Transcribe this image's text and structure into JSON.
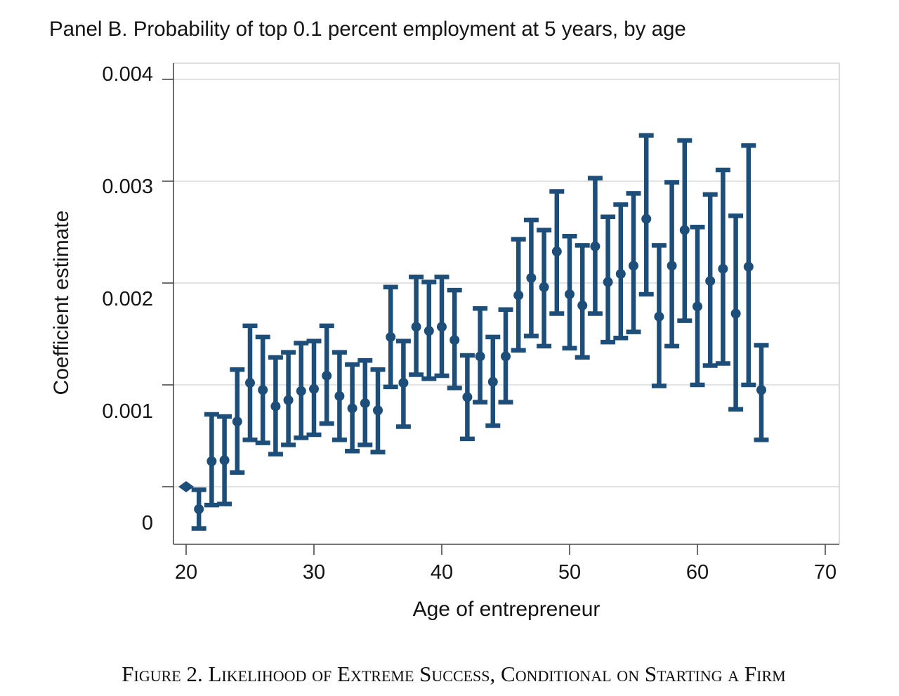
{
  "page": {
    "caption": "Figure 2. Likelihood of Extreme Success, Conditional on Starting a Firm"
  },
  "chart_data": {
    "type": "scatter",
    "subtype": "coefficient-plot-with-error-bars",
    "title": "Panel B. Probability of top 0.1 percent employment at 5 years, by age",
    "xlabel": "Age of entrepreneur",
    "ylabel": "Coefficient estimate",
    "x_ticks": [
      20,
      30,
      40,
      50,
      60,
      70
    ],
    "y_ticks": [
      0,
      0.001,
      0.002,
      0.003,
      0.004
    ],
    "y_tick_labels": [
      "0",
      "0.001",
      "0.002",
      "0.003",
      "0.004"
    ],
    "xlim": [
      19,
      71.1
    ],
    "ylim": [
      -0.00057,
      0.00416
    ],
    "grid": "horizontal",
    "legend": "none",
    "marker_color": "#1d4e79",
    "reference_age": 20,
    "points": [
      {
        "age": 20,
        "est": 0.0,
        "lo": null,
        "hi": null
      },
      {
        "age": 21,
        "est": -0.00022,
        "lo": -0.00041,
        "hi": -3e-05
      },
      {
        "age": 22,
        "est": 0.00025,
        "lo": -0.00018,
        "hi": 0.00071
      },
      {
        "age": 23,
        "est": 0.00026,
        "lo": -0.00017,
        "hi": 0.00069
      },
      {
        "age": 24,
        "est": 0.00064,
        "lo": 0.00014,
        "hi": 0.00115
      },
      {
        "age": 25,
        "est": 0.00102,
        "lo": 0.00046,
        "hi": 0.00158
      },
      {
        "age": 26,
        "est": 0.00095,
        "lo": 0.00043,
        "hi": 0.00147
      },
      {
        "age": 27,
        "est": 0.00079,
        "lo": 0.00032,
        "hi": 0.00127
      },
      {
        "age": 28,
        "est": 0.00085,
        "lo": 0.00041,
        "hi": 0.00132
      },
      {
        "age": 29,
        "est": 0.00094,
        "lo": 0.00048,
        "hi": 0.00141
      },
      {
        "age": 30,
        "est": 0.00096,
        "lo": 0.00051,
        "hi": 0.00143
      },
      {
        "age": 31,
        "est": 0.00109,
        "lo": 0.00062,
        "hi": 0.00158
      },
      {
        "age": 32,
        "est": 0.00089,
        "lo": 0.00046,
        "hi": 0.00132
      },
      {
        "age": 33,
        "est": 0.00077,
        "lo": 0.00035,
        "hi": 0.0012
      },
      {
        "age": 34,
        "est": 0.00082,
        "lo": 0.00041,
        "hi": 0.00124
      },
      {
        "age": 35,
        "est": 0.00075,
        "lo": 0.00034,
        "hi": 0.00115
      },
      {
        "age": 36,
        "est": 0.00147,
        "lo": 0.00098,
        "hi": 0.00196
      },
      {
        "age": 37,
        "est": 0.00102,
        "lo": 0.00059,
        "hi": 0.00143
      },
      {
        "age": 38,
        "est": 0.00157,
        "lo": 0.0011,
        "hi": 0.00206
      },
      {
        "age": 39,
        "est": 0.00153,
        "lo": 0.00106,
        "hi": 0.00201
      },
      {
        "age": 40,
        "est": 0.00157,
        "lo": 0.00109,
        "hi": 0.00206
      },
      {
        "age": 41,
        "est": 0.00144,
        "lo": 0.00097,
        "hi": 0.00193
      },
      {
        "age": 42,
        "est": 0.00088,
        "lo": 0.00047,
        "hi": 0.00129
      },
      {
        "age": 43,
        "est": 0.00128,
        "lo": 0.00083,
        "hi": 0.00175
      },
      {
        "age": 44,
        "est": 0.00103,
        "lo": 0.0006,
        "hi": 0.00147
      },
      {
        "age": 45,
        "est": 0.00128,
        "lo": 0.00083,
        "hi": 0.00174
      },
      {
        "age": 46,
        "est": 0.00188,
        "lo": 0.00134,
        "hi": 0.00243
      },
      {
        "age": 47,
        "est": 0.00205,
        "lo": 0.00148,
        "hi": 0.00262
      },
      {
        "age": 48,
        "est": 0.00196,
        "lo": 0.00138,
        "hi": 0.00252
      },
      {
        "age": 49,
        "est": 0.00231,
        "lo": 0.0017,
        "hi": 0.0029
      },
      {
        "age": 50,
        "est": 0.00189,
        "lo": 0.00136,
        "hi": 0.00246
      },
      {
        "age": 51,
        "est": 0.00178,
        "lo": 0.00127,
        "hi": 0.00237
      },
      {
        "age": 52,
        "est": 0.00236,
        "lo": 0.0017,
        "hi": 0.00303
      },
      {
        "age": 53,
        "est": 0.00201,
        "lo": 0.00142,
        "hi": 0.00265
      },
      {
        "age": 54,
        "est": 0.00209,
        "lo": 0.00146,
        "hi": 0.00277
      },
      {
        "age": 55,
        "est": 0.00217,
        "lo": 0.00152,
        "hi": 0.00288
      },
      {
        "age": 56,
        "est": 0.00263,
        "lo": 0.00189,
        "hi": 0.00345
      },
      {
        "age": 57,
        "est": 0.00167,
        "lo": 0.00099,
        "hi": 0.00237
      },
      {
        "age": 58,
        "est": 0.00217,
        "lo": 0.00138,
        "hi": 0.00299
      },
      {
        "age": 59,
        "est": 0.00252,
        "lo": 0.00163,
        "hi": 0.0034
      },
      {
        "age": 60,
        "est": 0.00177,
        "lo": 0.001,
        "hi": 0.00255
      },
      {
        "age": 61,
        "est": 0.00202,
        "lo": 0.00119,
        "hi": 0.00287
      },
      {
        "age": 62,
        "est": 0.00214,
        "lo": 0.00121,
        "hi": 0.00311
      },
      {
        "age": 63,
        "est": 0.0017,
        "lo": 0.00076,
        "hi": 0.00266
      },
      {
        "age": 64,
        "est": 0.00216,
        "lo": 0.001,
        "hi": 0.00335
      },
      {
        "age": 65,
        "est": 0.00095,
        "lo": 0.00046,
        "hi": 0.00139
      }
    ]
  }
}
